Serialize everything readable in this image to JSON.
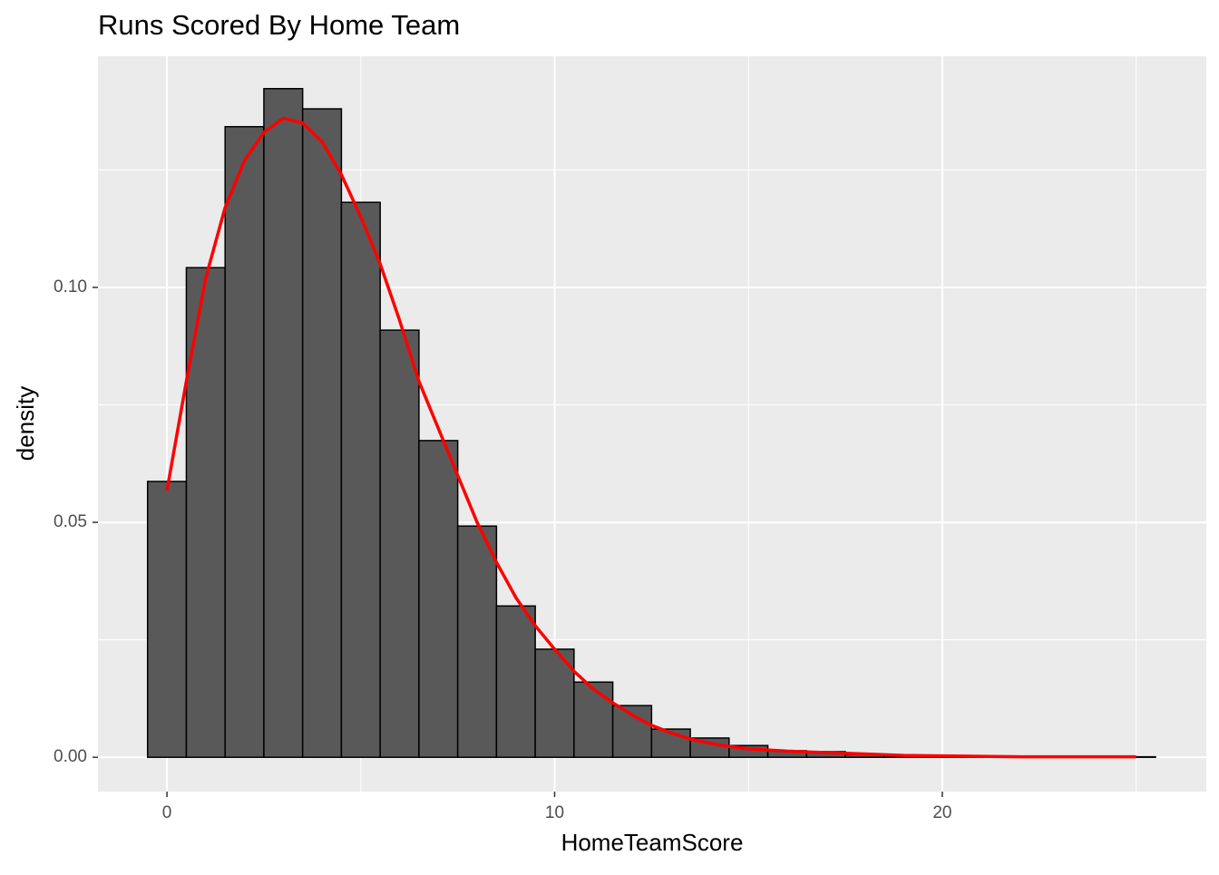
{
  "chart_data": {
    "type": "histogram",
    "title": "Runs Scored By Home Team",
    "x_label": "HomeTeamScore",
    "y_label": "density",
    "bins": [
      -0.5,
      0.5,
      1.5,
      2.5,
      3.5,
      4.5,
      5.5,
      6.5,
      7.5,
      8.5,
      9.5,
      10.5,
      11.5,
      12.5,
      13.5,
      14.5,
      15.5,
      16.5,
      17.5,
      18.5,
      19.5,
      20.5,
      21.5,
      22.5,
      23.5,
      24.5,
      25.5
    ],
    "values": [
      0.0587,
      0.1042,
      0.1342,
      0.1423,
      0.138,
      0.1181,
      0.0909,
      0.0674,
      0.0492,
      0.0322,
      0.023,
      0.016,
      0.011,
      0.006,
      0.0041,
      0.0025,
      0.0014,
      0.0012,
      0.0006,
      0.0004,
      0.0002,
      0.0001,
      0.0001,
      0.0001,
      0.0001,
      0.0001
    ],
    "color": "#595959",
    "edgecolor": "#000000",
    "density": {
      "type": "line",
      "color": "#ff0000",
      "x": [
        0,
        0.5,
        1,
        1.5,
        2,
        2.5,
        3,
        3.5,
        4,
        4.5,
        5,
        5.5,
        6,
        6.5,
        7,
        7.5,
        8,
        8.5,
        9,
        9.5,
        10,
        10.5,
        11,
        11.5,
        12,
        12.5,
        13,
        13.5,
        14,
        14.5,
        15,
        16,
        17,
        18,
        19,
        20,
        21,
        22,
        23,
        24,
        25
      ],
      "values": [
        0.0568,
        0.08,
        0.102,
        0.117,
        0.127,
        0.133,
        0.136,
        0.135,
        0.131,
        0.124,
        0.115,
        0.105,
        0.093,
        0.08,
        0.07,
        0.06,
        0.05,
        0.0415,
        0.034,
        0.028,
        0.023,
        0.0183,
        0.0145,
        0.0116,
        0.009,
        0.0068,
        0.0052,
        0.0039,
        0.003,
        0.0023,
        0.0018,
        0.0013,
        0.001,
        0.0007,
        0.0004,
        0.0003,
        0.0002,
        0.0001,
        0.0001,
        0.0001,
        0.0001
      ]
    },
    "xlim": [
      -1.78,
      26.81
    ],
    "ylim": [
      -0.0073,
      0.1492
    ],
    "xticks": [
      0,
      10,
      20
    ],
    "yticks": [
      {
        "value": 0,
        "label": "0.00"
      },
      {
        "value": 0.05,
        "label": "0.05"
      },
      {
        "value": 0.1,
        "label": "0.10"
      }
    ],
    "grid": true
  }
}
